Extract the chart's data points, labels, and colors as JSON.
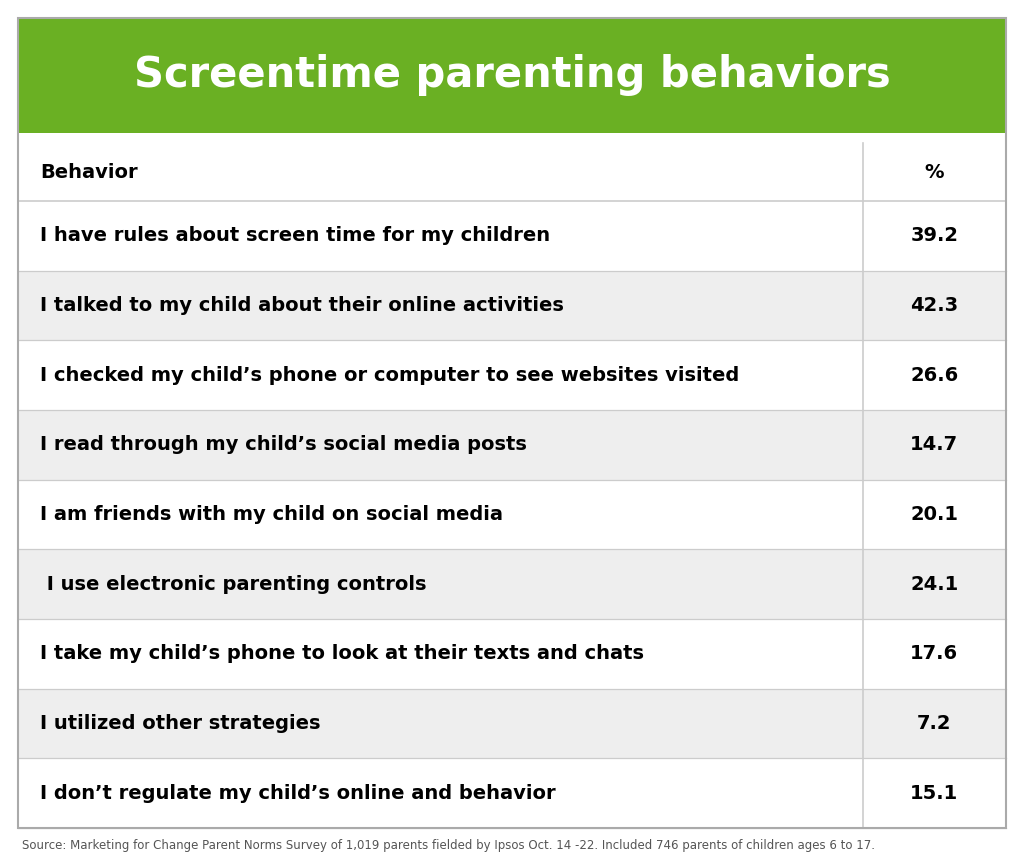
{
  "title": "Screentime parenting behaviors",
  "title_bg_color": "#6ab023",
  "title_text_color": "#ffffff",
  "header_behavior": "Behavior",
  "header_pct": "%",
  "rows": [
    {
      "behavior": "I have rules about screen time for my children",
      "pct": "39.2",
      "bg": "#ffffff"
    },
    {
      "behavior": "I talked to my child about their online activities",
      "pct": "42.3",
      "bg": "#eeeeee"
    },
    {
      "behavior": "I checked my child’s phone or computer to see websites visited",
      "pct": "26.6",
      "bg": "#ffffff"
    },
    {
      "behavior": "I read through my child’s social media posts",
      "pct": "14.7",
      "bg": "#eeeeee"
    },
    {
      "behavior": "I am friends with my child on social media",
      "pct": "20.1",
      "bg": "#ffffff"
    },
    {
      "behavior": " I use electronic parenting controls",
      "pct": "24.1",
      "bg": "#eeeeee"
    },
    {
      "behavior": "I take my child’s phone to look at their texts and chats",
      "pct": "17.6",
      "bg": "#ffffff"
    },
    {
      "behavior": "I utilized other strategies",
      "pct": "7.2",
      "bg": "#eeeeee"
    },
    {
      "behavior": "I don’t regulate my child’s online and behavior",
      "pct": "15.1",
      "bg": "#ffffff"
    }
  ],
  "footer": "Source: Marketing for Change Parent Norms Survey of 1,019 parents fielded by Ipsos Oct. 14 -22. Included 746 parents of children ages 6 to 17.",
  "outer_border_color": "#aaaaaa",
  "line_color": "#cccccc",
  "header_text_color": "#000000",
  "row_text_color": "#000000",
  "behavior_font_size": 14,
  "pct_font_size": 14,
  "header_font_size": 14,
  "title_font_size": 30,
  "footer_font_size": 8.5,
  "fig_width": 10.24,
  "fig_height": 8.68,
  "dpi": 100
}
